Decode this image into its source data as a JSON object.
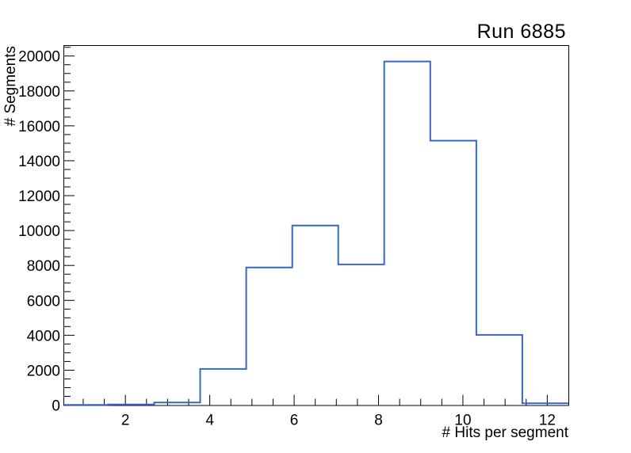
{
  "window": {
    "background": "#ffffff"
  },
  "chart_data": {
    "type": "histogram",
    "style": "step-outline",
    "title": "Run 6885",
    "xlabel": "# Hits per segment",
    "ylabel": "# Segments",
    "xlim": [
      0.55,
      12.5
    ],
    "ylim": [
      0,
      20600
    ],
    "grid": false,
    "legend": "none",
    "bin_edges": [
      0.5,
      1.591,
      2.682,
      3.773,
      4.864,
      5.955,
      7.045,
      8.136,
      9.227,
      10.318,
      11.409,
      12.5
    ],
    "values": [
      15,
      30,
      150,
      2070,
      7880,
      10290,
      8060,
      19690,
      15150,
      4020,
      100
    ],
    "x_major_ticks": [
      2,
      4,
      6,
      8,
      10,
      12
    ],
    "x_tick_labels": [
      "2",
      "4",
      "6",
      "8",
      "10",
      "12"
    ],
    "x_minor_step": 0.5,
    "y_major_ticks": [
      0,
      2000,
      4000,
      6000,
      8000,
      10000,
      12000,
      14000,
      16000,
      18000,
      20000
    ],
    "y_tick_labels": [
      "0",
      "2000",
      "4000",
      "6000",
      "8000",
      "10000",
      "12000",
      "14000",
      "16000",
      "18000",
      "20000"
    ],
    "y_minor_step": 500,
    "line_color": "#3766c5",
    "axis_color": "#000000",
    "text_color": "#000000"
  }
}
